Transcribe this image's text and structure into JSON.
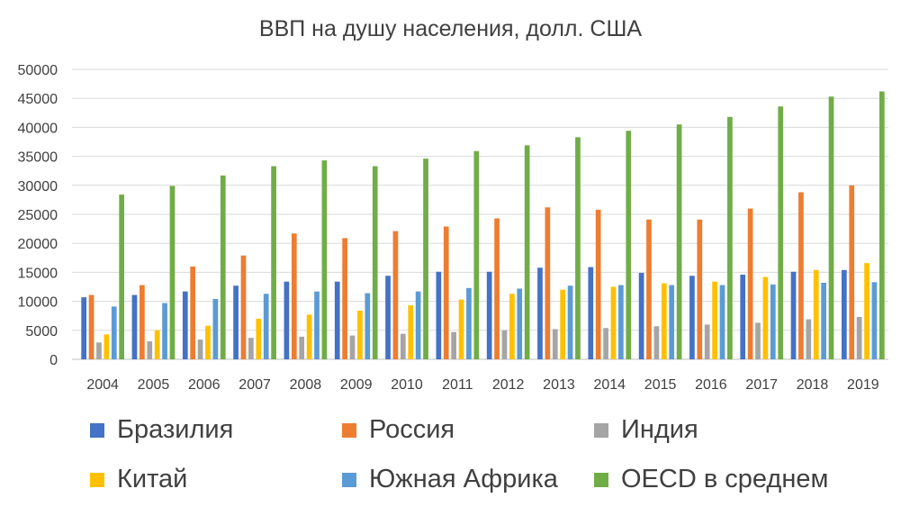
{
  "chart_data": {
    "type": "bar",
    "title": "ВВП на душу населения, долл. США",
    "xlabel": "",
    "ylabel": "",
    "ylim": [
      0,
      50000
    ],
    "yticks": [
      0,
      5000,
      10000,
      15000,
      20000,
      25000,
      30000,
      35000,
      40000,
      45000,
      50000
    ],
    "grid": true,
    "legend_position": "bottom",
    "categories": [
      "2004",
      "2005",
      "2006",
      "2007",
      "2008",
      "2009",
      "2010",
      "2011",
      "2012",
      "2013",
      "2014",
      "2015",
      "2016",
      "2017",
      "2018",
      "2019"
    ],
    "series": [
      {
        "name": "Бразилия",
        "color": "#4472C4",
        "values": [
          10700,
          11100,
          11700,
          12700,
          13400,
          13400,
          14400,
          15100,
          15100,
          15800,
          15900,
          14900,
          14400,
          14600,
          15100,
          15400
        ]
      },
      {
        "name": "Россия",
        "color": "#ED7D31",
        "values": [
          11100,
          12800,
          16000,
          17900,
          21700,
          20900,
          22100,
          22900,
          24300,
          26200,
          25800,
          24100,
          24100,
          26000,
          28800,
          30000
        ]
      },
      {
        "name": "Индия",
        "color": "#A5A5A5",
        "values": [
          2900,
          3100,
          3400,
          3700,
          3900,
          4100,
          4400,
          4700,
          5000,
          5200,
          5400,
          5700,
          6000,
          6300,
          6900,
          7300
        ]
      },
      {
        "name": "Китай",
        "color": "#FFC000",
        "values": [
          4300,
          5000,
          5800,
          7000,
          7700,
          8400,
          9300,
          10300,
          11300,
          12000,
          12500,
          13100,
          13400,
          14200,
          15400,
          16600
        ]
      },
      {
        "name": "Южная Африка",
        "color": "#5B9BD5",
        "values": [
          9100,
          9700,
          10400,
          11300,
          11700,
          11400,
          11700,
          12300,
          12200,
          12700,
          12800,
          12800,
          12800,
          12900,
          13200,
          13300
        ]
      },
      {
        "name": "OECD в среднем",
        "color": "#70AD47",
        "values": [
          28400,
          29900,
          31700,
          33300,
          34300,
          33300,
          34600,
          35900,
          36900,
          38300,
          39400,
          40500,
          41800,
          43600,
          45300,
          46200
        ]
      }
    ]
  }
}
